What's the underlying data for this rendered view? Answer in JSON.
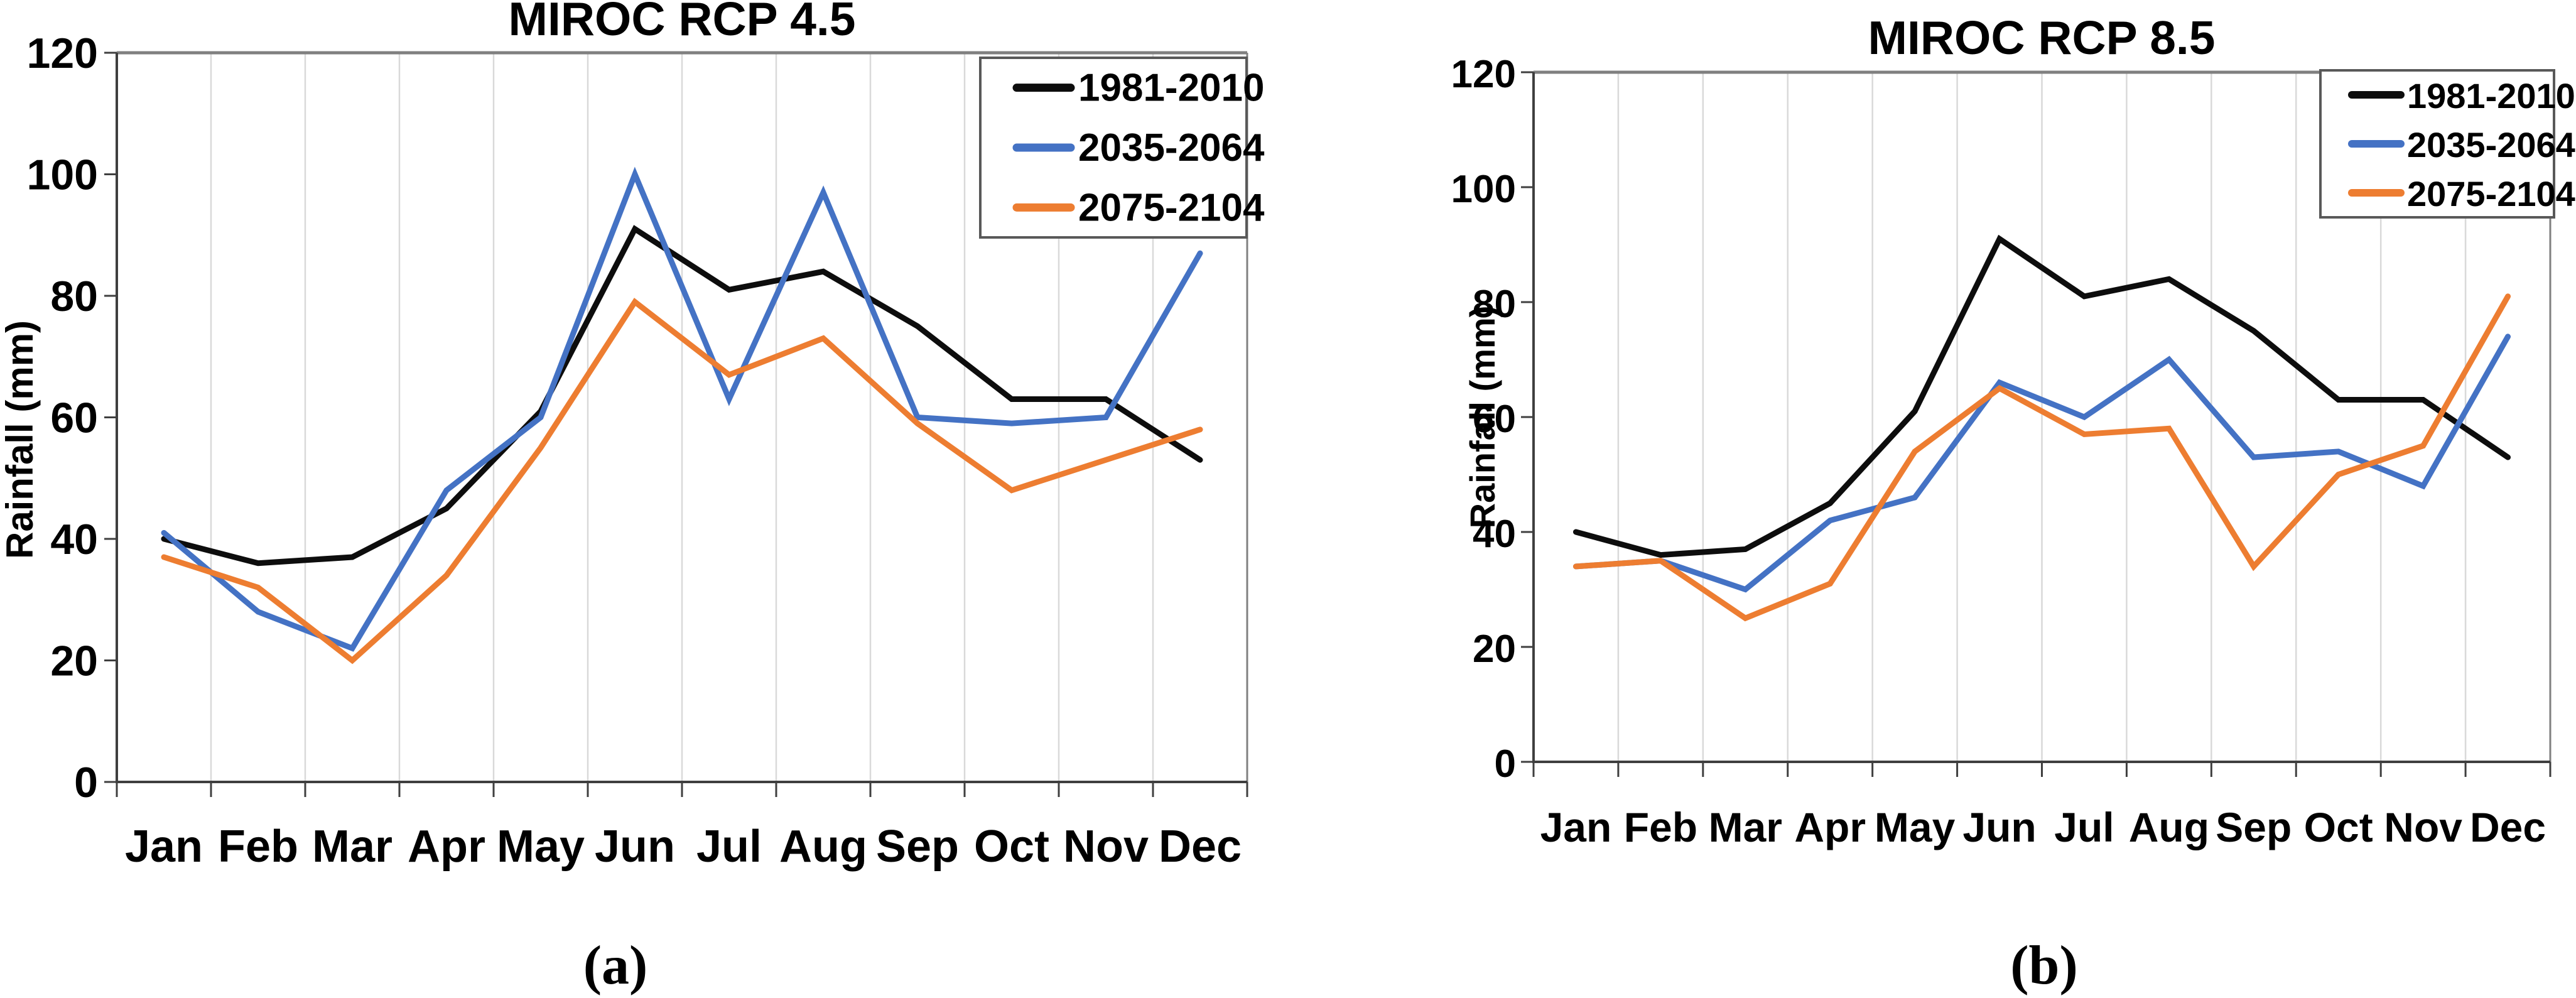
{
  "figure": {
    "captions": {
      "a": "(a)",
      "b": "(b)"
    }
  },
  "chart_data": [
    {
      "id": "miroc-rcp-45",
      "type": "line",
      "title": "MIROC RCP 4.5",
      "ylabel": "Rainfall (mm)",
      "xlabel": "",
      "ylim": [
        0,
        120
      ],
      "yticks": [
        0,
        20,
        40,
        60,
        80,
        100,
        120
      ],
      "grid": "vertical",
      "legend_position": "top-right",
      "caption": "(a)",
      "categories": [
        "Jan",
        "Feb",
        "Mar",
        "Apr",
        "May",
        "Jun",
        "Jul",
        "Aug",
        "Sep",
        "Oct",
        "Nov",
        "Dec"
      ],
      "series": [
        {
          "name": "1981-2010",
          "color": "#0d0d0d",
          "values": [
            40,
            36,
            37,
            45,
            61,
            91,
            81,
            84,
            75,
            63,
            63,
            53
          ]
        },
        {
          "name": "2035-2064",
          "color": "#4472c4",
          "values": [
            41,
            28,
            22,
            48,
            60,
            100,
            63,
            97,
            60,
            59,
            60,
            87
          ]
        },
        {
          "name": "2075-2104",
          "color": "#ed7d31",
          "values": [
            37,
            32,
            20,
            34,
            55,
            79,
            67,
            73,
            59,
            48,
            53,
            58
          ]
        }
      ]
    },
    {
      "id": "miroc-rcp-85",
      "type": "line",
      "title": "MIROC RCP 8.5",
      "ylabel": "Rainfall (mm)",
      "xlabel": "",
      "ylim": [
        0,
        120
      ],
      "yticks": [
        0,
        20,
        40,
        60,
        80,
        100,
        120
      ],
      "grid": "vertical",
      "legend_position": "top-right",
      "caption": "(b)",
      "categories": [
        "Jan",
        "Feb",
        "Mar",
        "Apr",
        "May",
        "Jun",
        "Jul",
        "Aug",
        "Sep",
        "Oct",
        "Nov",
        "Dec"
      ],
      "series": [
        {
          "name": "1981-2010",
          "color": "#0d0d0d",
          "values": [
            40,
            36,
            37,
            45,
            61,
            91,
            81,
            84,
            75,
            63,
            63,
            53
          ]
        },
        {
          "name": "2035-2064",
          "color": "#4472c4",
          "values": [
            34,
            35,
            30,
            42,
            46,
            66,
            60,
            70,
            53,
            54,
            48,
            74
          ]
        },
        {
          "name": "2075-2104",
          "color": "#ed7d31",
          "values": [
            34,
            35,
            25,
            31,
            54,
            65,
            57,
            58,
            34,
            50,
            55,
            81
          ]
        }
      ]
    }
  ]
}
